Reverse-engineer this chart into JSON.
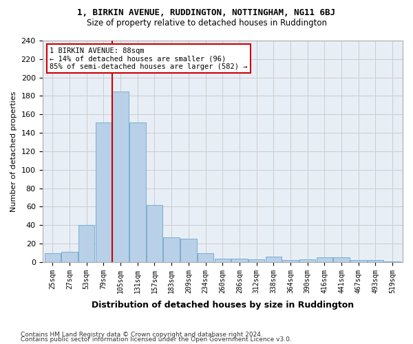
{
  "title1": "1, BIRKIN AVENUE, RUDDINGTON, NOTTINGHAM, NG11 6BJ",
  "title2": "Size of property relative to detached houses in Ruddington",
  "xlabel": "Distribution of detached houses by size in Ruddington",
  "ylabel": "Number of detached properties",
  "footer1": "Contains HM Land Registry data © Crown copyright and database right 2024.",
  "footer2": "Contains public sector information licensed under the Open Government Licence v3.0.",
  "categories": [
    "25sqm",
    "27sqm",
    "53sqm",
    "79sqm",
    "105sqm",
    "131sqm",
    "157sqm",
    "183sqm",
    "209sqm",
    "234sqm",
    "260sqm",
    "286sqm",
    "312sqm",
    "338sqm",
    "364sqm",
    "390sqm",
    "416sqm",
    "441sqm",
    "467sqm",
    "493sqm",
    "519sqm"
  ],
  "values": [
    10,
    11,
    40,
    151,
    185,
    151,
    62,
    27,
    25,
    10,
    4,
    4,
    3,
    6,
    2,
    3,
    5,
    5,
    2,
    2,
    1
  ],
  "bar_color": "#b8d0e8",
  "bar_edge_color": "#7aaecf",
  "grid_color": "#cccccc",
  "bg_color": "#e8eef6",
  "annotation_line1": "1 BIRKIN AVENUE: 88sqm",
  "annotation_line2": "← 14% of detached houses are smaller (96)",
  "annotation_line3": "85% of semi-detached houses are larger (582) →",
  "vline_x": 3.5,
  "vline_color": "#cc0000",
  "annotation_box_color": "#ffffff",
  "annotation_box_edge": "#cc0000",
  "ylim_max": 240,
  "yticks": [
    0,
    20,
    40,
    60,
    80,
    100,
    120,
    140,
    160,
    180,
    200,
    220,
    240
  ]
}
